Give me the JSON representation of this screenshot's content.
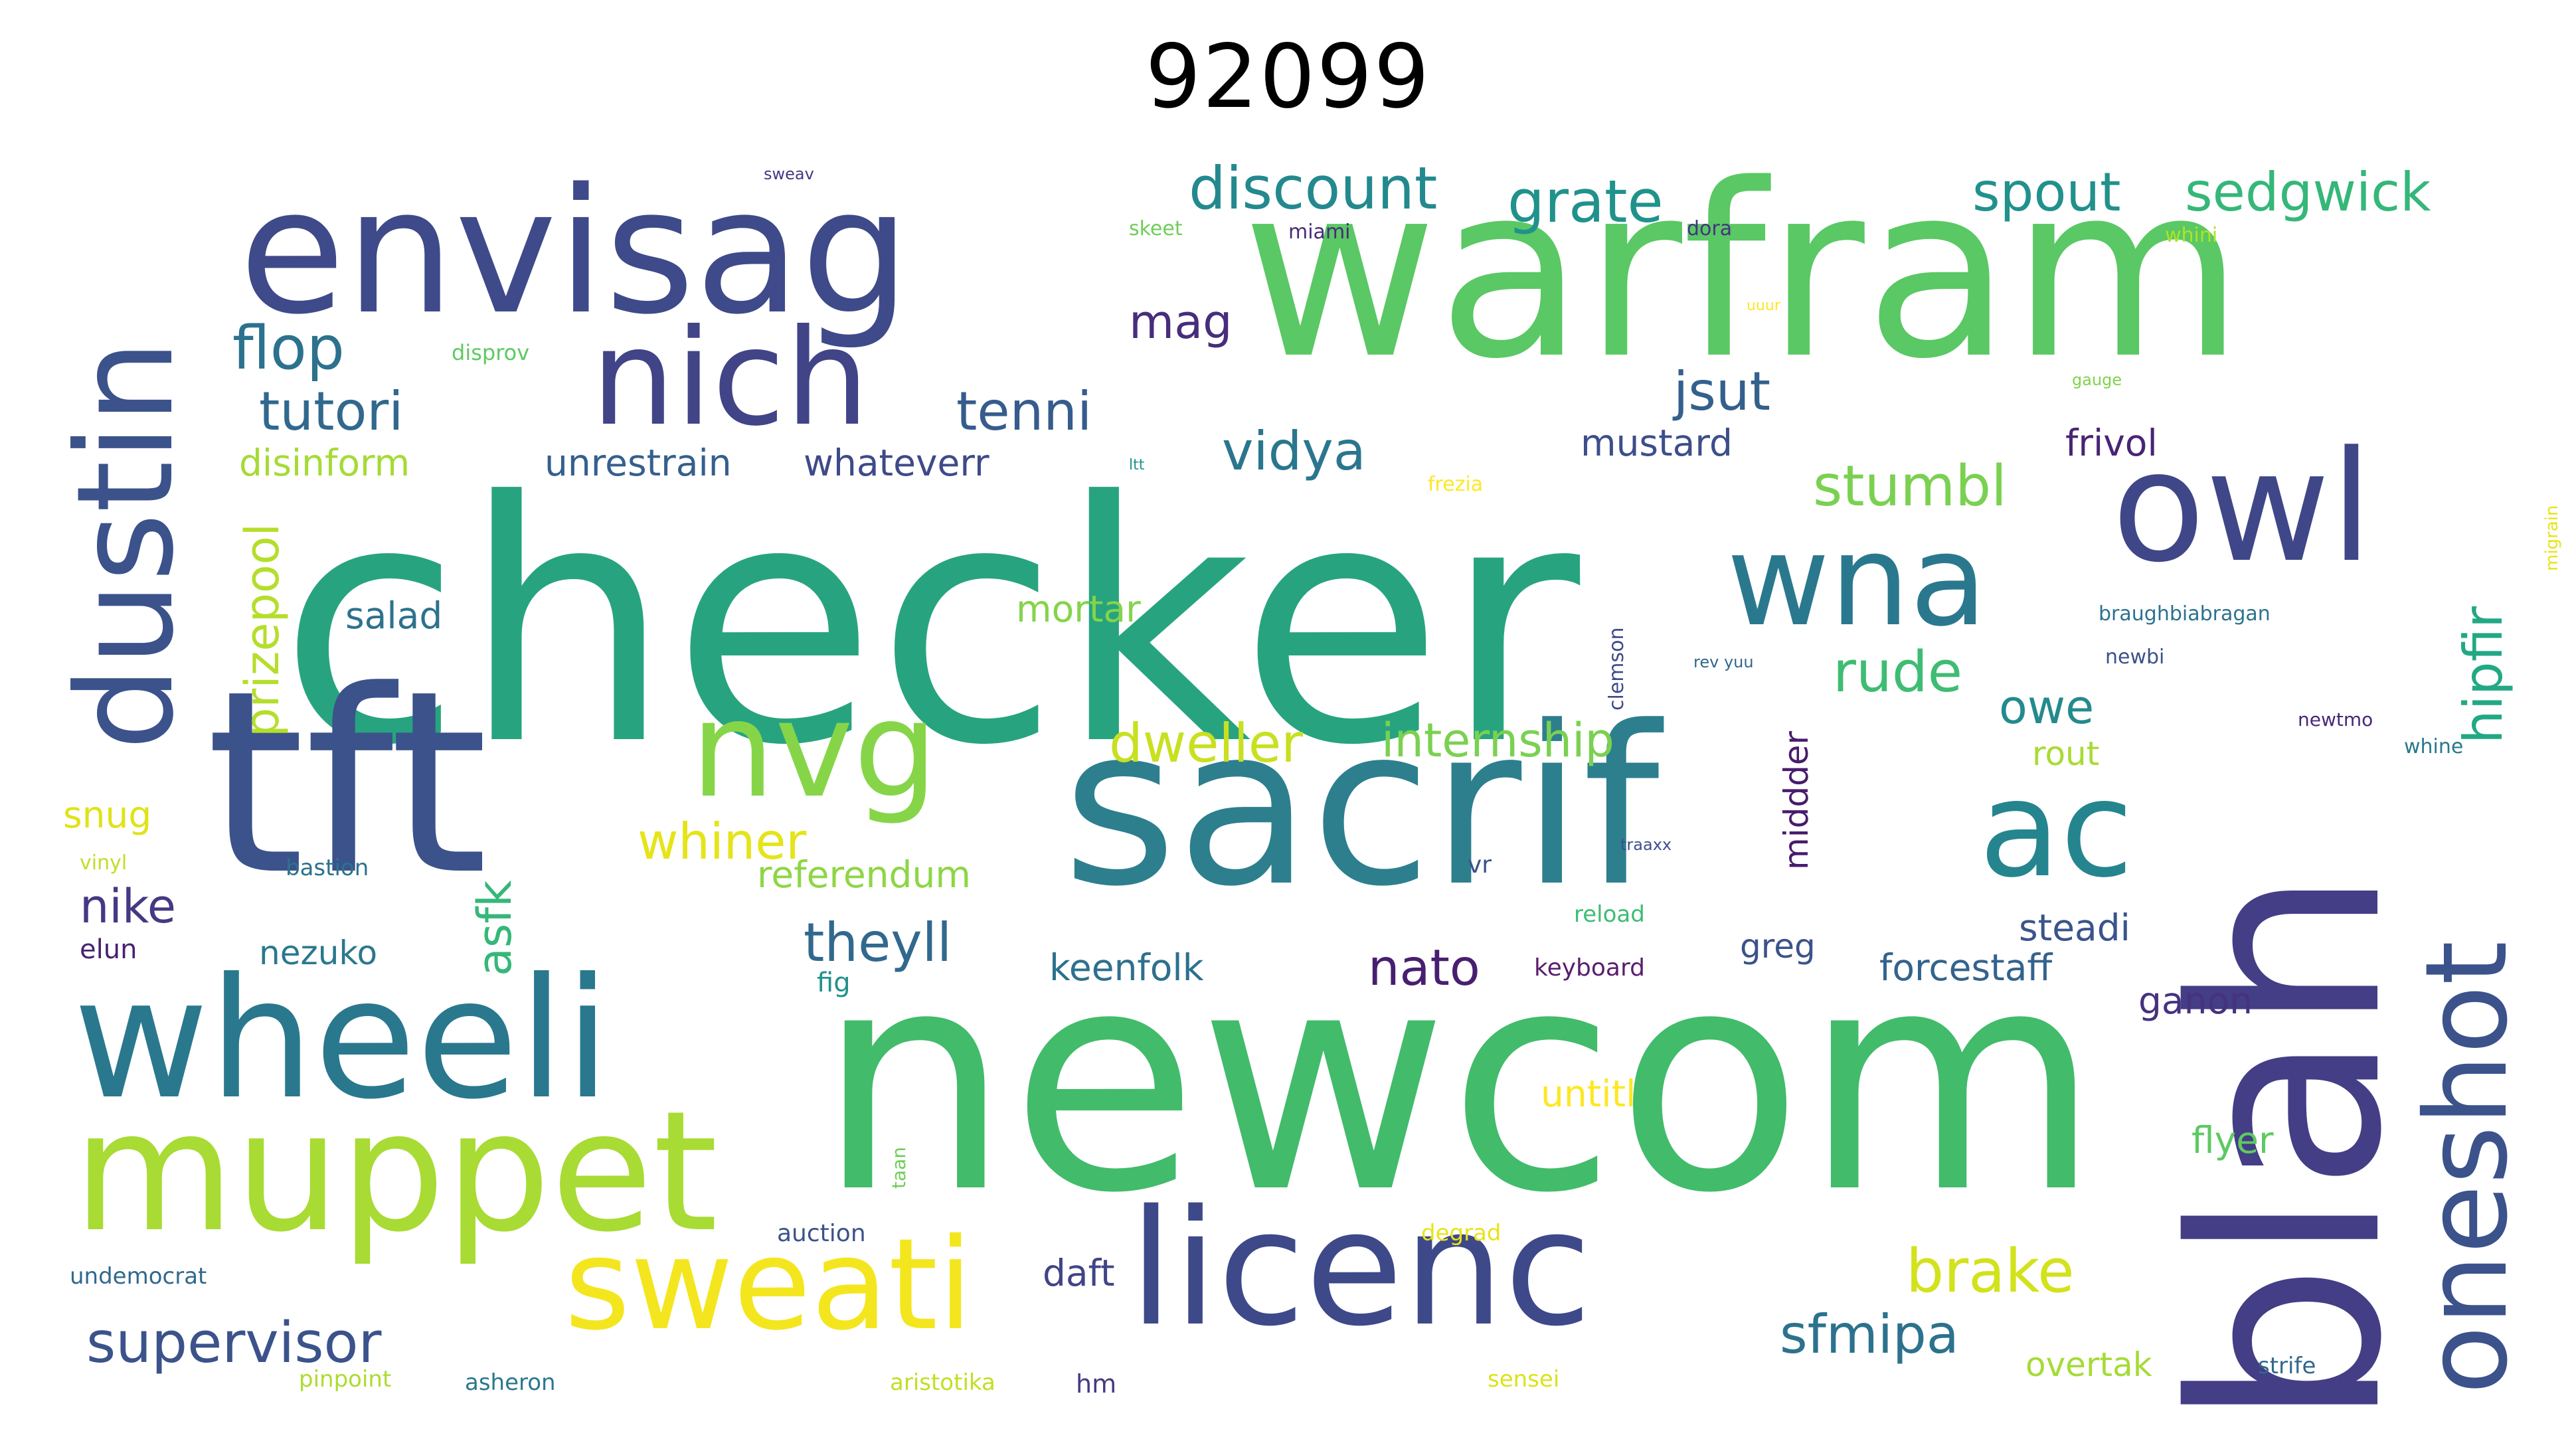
{
  "title": "92099",
  "palette": {
    "c1": "#440154",
    "c2": "#3b528b",
    "c3": "#2c728e",
    "c4": "#21918c",
    "c5": "#28ae80",
    "c6": "#5ec962",
    "c7": "#addc30",
    "c8": "#fde725",
    "c9": "#482878",
    "c10": "#31688e"
  },
  "words": [
    {
      "text": "checker",
      "color": "#27a47f"
    },
    {
      "text": "newcom",
      "color": "#42bb6b"
    },
    {
      "text": "warfram",
      "color": "#5ac864"
    },
    {
      "text": "sacrif",
      "color": "#2d7f8e"
    },
    {
      "text": "blah",
      "color": "#433e85"
    },
    {
      "text": "tft",
      "color": "#3b528b"
    },
    {
      "text": "envisag",
      "color": "#3e4a89"
    },
    {
      "text": "wheeli",
      "color": "#2a788e"
    },
    {
      "text": "muppet",
      "color": "#a8db34"
    },
    {
      "text": "licenc",
      "color": "#3e4989"
    },
    {
      "text": "nich",
      "color": "#414487"
    },
    {
      "text": "owl",
      "color": "#3f4788"
    },
    {
      "text": "wna",
      "color": "#2a788e"
    },
    {
      "text": "dustin",
      "color": "#3b528b"
    },
    {
      "text": "nvg",
      "color": "#86d549"
    },
    {
      "text": "sweati",
      "color": "#f4e61e"
    },
    {
      "text": "oneshot",
      "color": "#3b528b"
    },
    {
      "text": "ac",
      "color": "#25858e"
    },
    {
      "text": "discount",
      "color": "#23898e"
    },
    {
      "text": "grate",
      "color": "#20928c"
    },
    {
      "text": "spout",
      "color": "#21918c"
    },
    {
      "text": "sedgwick",
      "color": "#35b779"
    },
    {
      "text": "flop",
      "color": "#2c728e"
    },
    {
      "text": "tutori",
      "color": "#31688e"
    },
    {
      "text": "tenni",
      "color": "#365c8d"
    },
    {
      "text": "jsut",
      "color": "#34608d"
    },
    {
      "text": "mag",
      "color": "#472d7b"
    },
    {
      "text": "vidya",
      "color": "#2a768e"
    },
    {
      "text": "stumbl",
      "color": "#7ad151"
    },
    {
      "text": "hipfir",
      "color": "#22a884"
    },
    {
      "text": "prizepool",
      "color": "#b5de2b"
    },
    {
      "text": "disinform",
      "color": "#a5db36"
    },
    {
      "text": "unrestrain",
      "color": "#355f8d"
    },
    {
      "text": "whateverr",
      "color": "#3e4a89"
    },
    {
      "text": "mustard",
      "color": "#3d4e8a"
    },
    {
      "text": "frivol",
      "color": "#482475"
    },
    {
      "text": "rude",
      "color": "#3fbc73"
    },
    {
      "text": "owe",
      "color": "#238a8d"
    },
    {
      "text": "salad",
      "color": "#2c728e"
    },
    {
      "text": "mortar",
      "color": "#84d44b"
    },
    {
      "text": "dweller",
      "color": "#c8e020"
    },
    {
      "text": "internship",
      "color": "#7ad151"
    },
    {
      "text": "whiner",
      "color": "#e5e419"
    },
    {
      "text": "referendum",
      "color": "#8ed645"
    },
    {
      "text": "asfk",
      "color": "#35b779"
    },
    {
      "text": "nike",
      "color": "#443983"
    },
    {
      "text": "theyll",
      "color": "#31688e"
    },
    {
      "text": "nato",
      "color": "#481f70"
    },
    {
      "text": "keenfolk",
      "color": "#2d708e"
    },
    {
      "text": "forcestaff",
      "color": "#33638d"
    },
    {
      "text": "steadi",
      "color": "#3a548c"
    },
    {
      "text": "nezuko",
      "color": "#2a788e"
    },
    {
      "text": "greg",
      "color": "#3b528b"
    },
    {
      "text": "middder",
      "color": "#481b6d"
    },
    {
      "text": "rout",
      "color": "#a8db34"
    },
    {
      "text": "snug",
      "color": "#dfe318"
    },
    {
      "text": "elun",
      "color": "#482173"
    },
    {
      "text": "ganon",
      "color": "#46327e"
    },
    {
      "text": "brake",
      "color": "#d2e21b"
    },
    {
      "text": "untitl",
      "color": "#fde725"
    },
    {
      "text": "flyer",
      "color": "#5ec962"
    },
    {
      "text": "supervisor",
      "color": "#3b528b"
    },
    {
      "text": "sfmipa",
      "color": "#2c728e"
    },
    {
      "text": "daft",
      "color": "#414487"
    },
    {
      "text": "overtak",
      "color": "#a5db36"
    },
    {
      "text": "auction",
      "color": "#3b528b"
    },
    {
      "text": "undemocrat",
      "color": "#31688e"
    },
    {
      "text": "pinpoint",
      "color": "#addc30"
    },
    {
      "text": "asheron",
      "color": "#2a788e"
    },
    {
      "text": "aristotika",
      "color": "#c2df23"
    },
    {
      "text": "hm",
      "color": "#443983"
    },
    {
      "text": "sensei",
      "color": "#dde318"
    },
    {
      "text": "strife",
      "color": "#31688e"
    },
    {
      "text": "degrad",
      "color": "#e7e419"
    },
    {
      "text": "fig",
      "color": "#21918c"
    },
    {
      "text": "keyboard",
      "color": "#5a1d6d"
    },
    {
      "text": "reload",
      "color": "#3dbc74"
    },
    {
      "text": "vr",
      "color": "#3b528b"
    },
    {
      "text": "bastion",
      "color": "#2c728e"
    },
    {
      "text": "vinyl",
      "color": "#c0df25"
    },
    {
      "text": "frezia",
      "color": "#fde725"
    },
    {
      "text": "clemson",
      "color": "#3e4a89"
    },
    {
      "text": "skeet",
      "color": "#6ece58"
    },
    {
      "text": "miami",
      "color": "#472c7a"
    },
    {
      "text": "dora",
      "color": "#463480"
    },
    {
      "text": "whini",
      "color": "#ade428"
    },
    {
      "text": "disprov",
      "color": "#5ec962"
    },
    {
      "text": "braughbiabragan",
      "color": "#2c728e"
    },
    {
      "text": "newbi",
      "color": "#3b528b"
    },
    {
      "text": "whine",
      "color": "#2a788e"
    },
    {
      "text": "newtmo",
      "color": "#482878"
    },
    {
      "text": "migrain",
      "color": "#e7e419"
    },
    {
      "text": "gauge",
      "color": "#7fd34e"
    },
    {
      "text": "taan",
      "color": "#6ece58"
    },
    {
      "text": "rev yuu",
      "color": "#31688e"
    },
    {
      "text": "traaxx",
      "color": "#3b528b"
    },
    {
      "text": "sweav",
      "color": "#443983"
    },
    {
      "text": "ltt",
      "color": "#21918c"
    },
    {
      "text": "uuur",
      "color": "#fde725"
    }
  ]
}
